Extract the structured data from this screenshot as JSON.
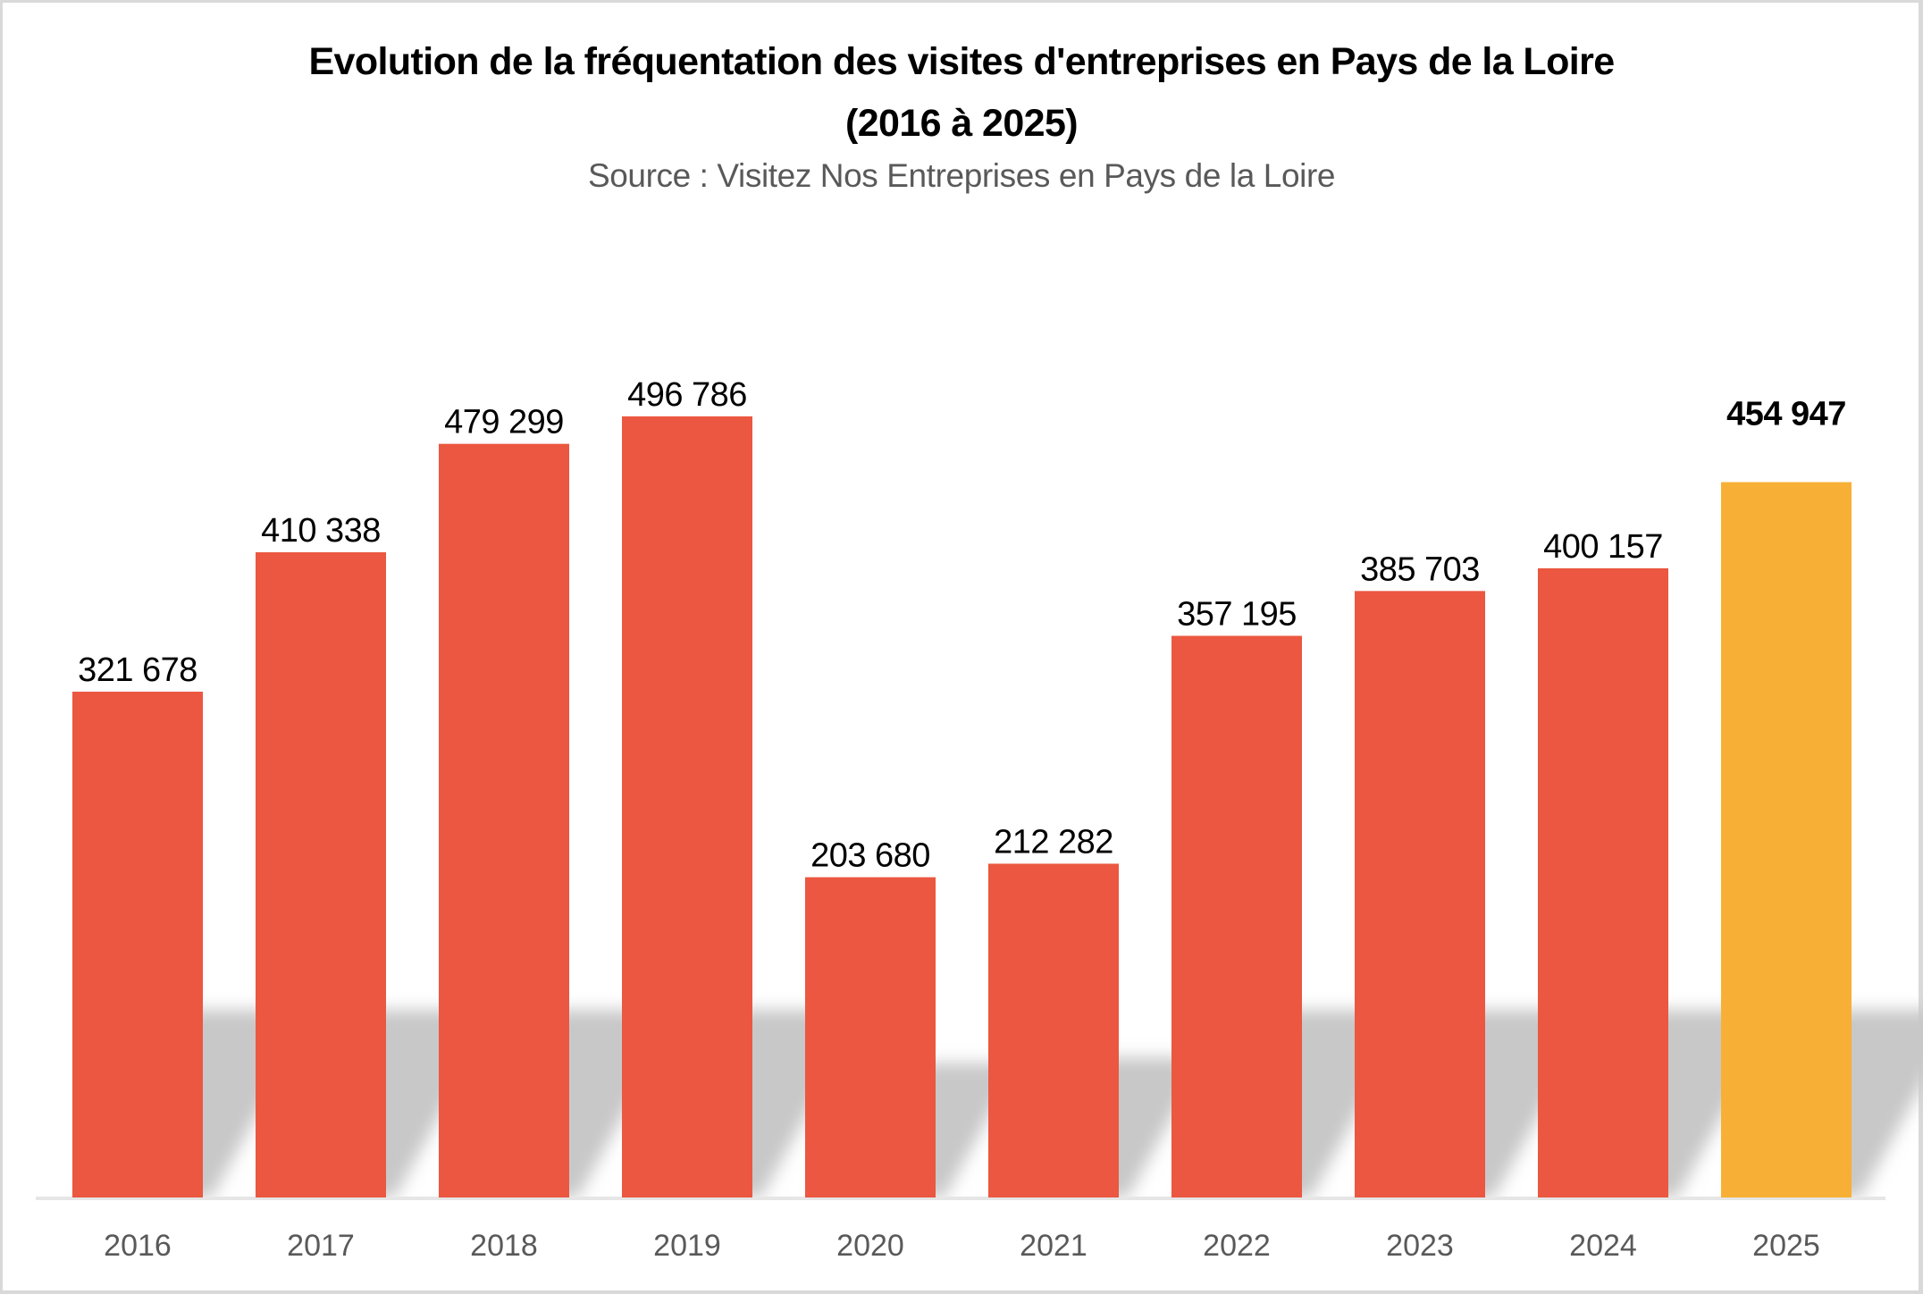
{
  "chart_data": {
    "type": "bar",
    "title": "Evolution de la fréquentation des visites d'entreprises en Pays de la Loire",
    "title_line2": "(2016 à 2025)",
    "subtitle": "Source : Visitez Nos Entreprises en Pays de la Loire",
    "xlabel": "",
    "ylabel": "",
    "categories": [
      "2016",
      "2017",
      "2018",
      "2019",
      "2020",
      "2021",
      "2022",
      "2023",
      "2024",
      "2025"
    ],
    "values": [
      321678,
      410338,
      479299,
      496786,
      203680,
      212282,
      357195,
      385703,
      400157,
      454947
    ],
    "data_labels": [
      "321 678",
      "410 338",
      "479 299",
      "496 786",
      "203 680",
      "212 282",
      "357 195",
      "385 703",
      "400 157",
      "454 947"
    ],
    "highlight_index": 9,
    "ylim": [
      0,
      500000
    ],
    "y_axis_visible": false,
    "grid": false,
    "legend": "none",
    "colors": {
      "bar": "#EB5740",
      "highlight_bar": "#F7B035",
      "highlight_label": "#F7B035",
      "label": "#000000",
      "tick_label": "#595959",
      "shadow": "#c8c8c8"
    }
  }
}
